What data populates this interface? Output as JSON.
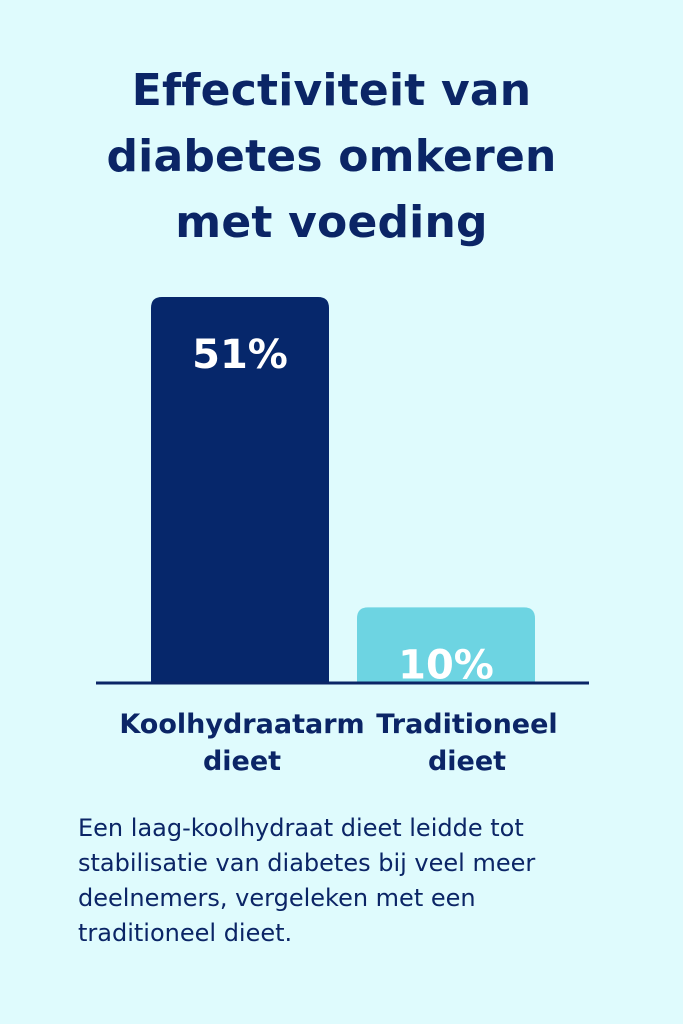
{
  "title_lines": [
    "Effectiviteit van",
    "diabetes omkeren",
    "met voeding"
  ],
  "caption": "Een laag-koolhydraat dieet leidde tot stabilisatie van diabetes bij veel meer deelnemers, vergeleken met een traditioneel dieet.",
  "colors": {
    "background": "#dffbfd",
    "text": "#0b2566",
    "bar_primary": "#06276b",
    "bar_secondary": "#6dd4e2",
    "bar_label": "#ffffff"
  },
  "chart_data": {
    "type": "bar",
    "title": "Effectiviteit van diabetes omkeren met voeding",
    "categories": [
      [
        "Koolhydraatarm",
        "dieet"
      ],
      [
        "Traditioneel",
        "dieet"
      ]
    ],
    "values": [
      51,
      10
    ],
    "value_labels": [
      "51%",
      "10%"
    ],
    "bar_colors": [
      "#06276b",
      "#6dd4e2"
    ],
    "xlabel": "",
    "ylabel": "",
    "ylim": [
      0,
      51
    ],
    "grid": false,
    "legend": "none"
  }
}
